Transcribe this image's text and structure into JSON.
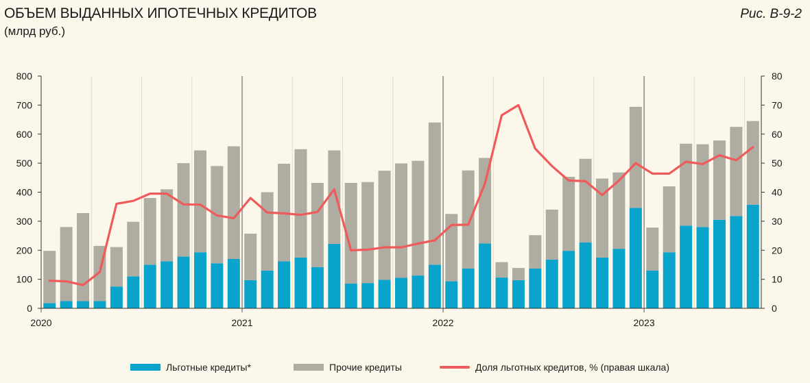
{
  "header": {
    "title": "ОБЪЕМ ВЫДАННЫХ ИПОТЕЧНЫХ КРЕДИТОВ",
    "subtitle": "(млрд руб.)",
    "figure_ref": "Рис. В-9-2"
  },
  "colors": {
    "preferential": "#0aa3cc",
    "other": "#afaca1",
    "share_line": "#ef5a5a",
    "grid": "#e3dcc9",
    "background": "#fbf7ea"
  },
  "legend": {
    "preferential": "Льготные кредиты*",
    "other": "Прочие кредиты",
    "share": "Доля льготных кредитов, % (правая шкала)"
  },
  "chart_data": {
    "type": "bar",
    "stacked": true,
    "x_labels": [
      "2020",
      "2021",
      "2022",
      "2023"
    ],
    "months": 43,
    "y_left": {
      "min": 0,
      "max": 800,
      "step": 100,
      "ticks": [
        "0",
        "100",
        "200",
        "300",
        "400",
        "500",
        "600",
        "700",
        "800"
      ]
    },
    "y_right": {
      "min": 0,
      "max": 80,
      "step": 10,
      "ticks": [
        "0",
        "10",
        "20",
        "30",
        "40",
        "50",
        "60",
        "70",
        "80"
      ]
    },
    "grid": true,
    "legend_position": "bottom",
    "series": [
      {
        "name": "Льготные кредиты*",
        "kind": "bar",
        "values": [
          18,
          25,
          25,
          25,
          75,
          110,
          150,
          162,
          178,
          193,
          155,
          170,
          97,
          130,
          162,
          175,
          142,
          222,
          85,
          87,
          98,
          105,
          113,
          150,
          93,
          137,
          223,
          106,
          97,
          137,
          168,
          198,
          227,
          175,
          205,
          346,
          130,
          193,
          285,
          280,
          305,
          318,
          357
        ]
      },
      {
        "name": "Прочие кредиты",
        "kind": "bar",
        "values": [
          180,
          255,
          303,
          190,
          136,
          188,
          230,
          248,
          322,
          351,
          335,
          388,
          160,
          270,
          336,
          373,
          290,
          322,
          347,
          348,
          376,
          394,
          395,
          490,
          232,
          338,
          295,
          53,
          42,
          115,
          172,
          255,
          288,
          272,
          263,
          348,
          148,
          227,
          282,
          285,
          273,
          307,
          288
        ]
      },
      {
        "name": "Доля льготных кредитов, % (правая шкала)",
        "kind": "line",
        "axis": "right",
        "values": [
          9.5,
          9.3,
          8,
          12.5,
          36,
          37,
          39.5,
          39.5,
          35.8,
          35.7,
          32,
          31,
          38,
          33,
          32.7,
          32.2,
          33.2,
          41,
          20,
          20.2,
          21,
          21,
          22.3,
          23.4,
          28.7,
          28.8,
          43,
          66.5,
          70,
          55,
          49,
          44,
          43.8,
          39,
          44,
          50,
          46.4,
          46.4,
          50.5,
          49.7,
          52.7,
          51,
          55.5
        ]
      }
    ]
  }
}
